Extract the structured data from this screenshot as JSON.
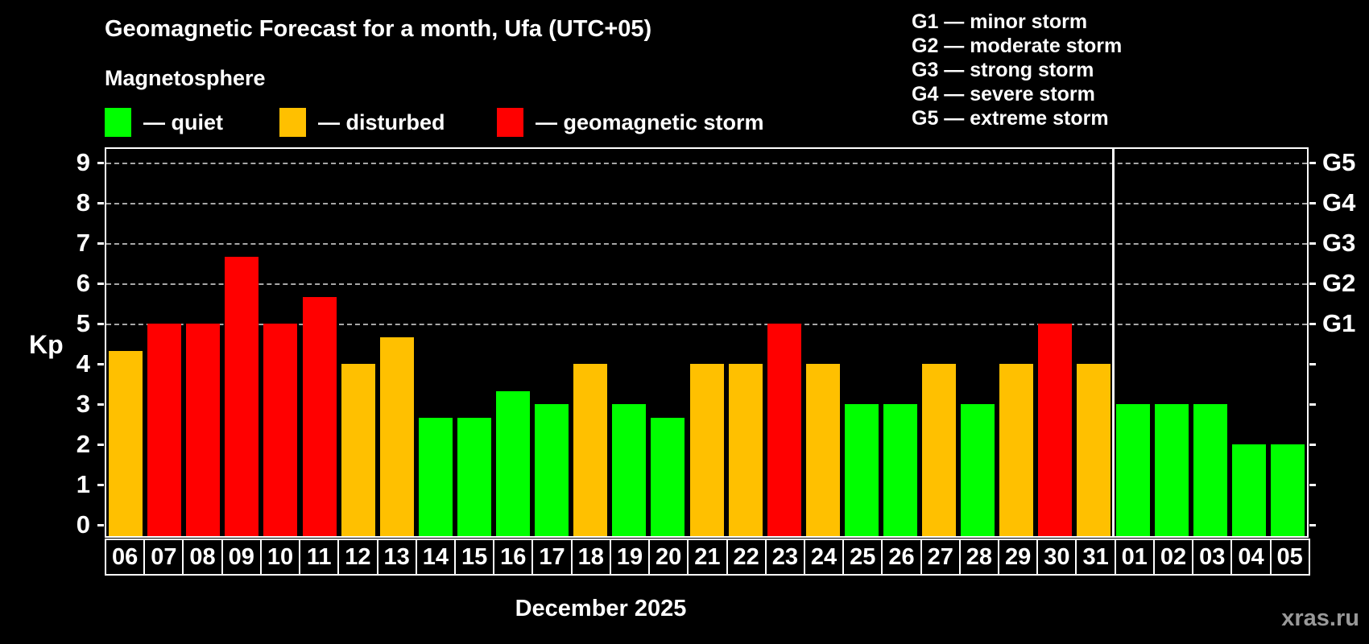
{
  "title": "Geomagnetic Forecast for a month, Ufa (UTC+05)",
  "subtitle": "Magnetosphere",
  "legend": {
    "items": [
      {
        "key": "quiet",
        "label": "— quiet",
        "color": "#00ff00"
      },
      {
        "key": "disturbed",
        "label": "— disturbed",
        "color": "#ffc000"
      },
      {
        "key": "storm",
        "label": "— geomagnetic storm",
        "color": "#ff0000"
      }
    ]
  },
  "storm_scale": [
    "G1 — minor storm",
    "G2 — moderate storm",
    "G3 — strong storm",
    "G4 — severe storm",
    "G5 — extreme storm"
  ],
  "watermark": "xras.ru",
  "chart_data": {
    "type": "bar",
    "title": "Geomagnetic Forecast for a month, Ufa (UTC+05)",
    "xlabel": "December 2025",
    "ylabel": "Kp",
    "ylim": [
      0,
      9
    ],
    "yticks": [
      0,
      1,
      2,
      3,
      4,
      5,
      6,
      7,
      8,
      9
    ],
    "grid": "dashed-at-storm-levels",
    "grid_levels": [
      {
        "label": "G1",
        "value": 5
      },
      {
        "label": "G2",
        "value": 6
      },
      {
        "label": "G3",
        "value": 7
      },
      {
        "label": "G4",
        "value": 8
      },
      {
        "label": "G5",
        "value": 9
      }
    ],
    "month_divider_after_index": 25,
    "categories": [
      "06",
      "07",
      "08",
      "09",
      "10",
      "11",
      "12",
      "13",
      "14",
      "15",
      "16",
      "17",
      "18",
      "19",
      "20",
      "21",
      "22",
      "23",
      "24",
      "25",
      "26",
      "27",
      "28",
      "29",
      "30",
      "31",
      "01",
      "02",
      "03",
      "04",
      "05"
    ],
    "series": [
      {
        "name": "Kp forecast",
        "values": [
          4.33,
          5,
          5,
          6.67,
          5,
          5.67,
          4,
          4.67,
          2.67,
          2.67,
          3.33,
          3,
          4,
          3,
          2.67,
          4,
          4,
          5,
          4,
          3,
          3,
          4,
          3,
          4,
          5,
          4,
          3,
          3,
          3,
          2,
          2
        ],
        "statuses": [
          "disturbed",
          "storm",
          "storm",
          "storm",
          "storm",
          "storm",
          "disturbed",
          "disturbed",
          "quiet",
          "quiet",
          "quiet",
          "quiet",
          "disturbed",
          "quiet",
          "quiet",
          "disturbed",
          "disturbed",
          "storm",
          "disturbed",
          "quiet",
          "quiet",
          "disturbed",
          "quiet",
          "disturbed",
          "storm",
          "disturbed",
          "quiet",
          "quiet",
          "quiet",
          "quiet",
          "quiet"
        ]
      }
    ],
    "status_colors": {
      "quiet": "#00ff00",
      "disturbed": "#ffc000",
      "storm": "#ff0000"
    }
  }
}
